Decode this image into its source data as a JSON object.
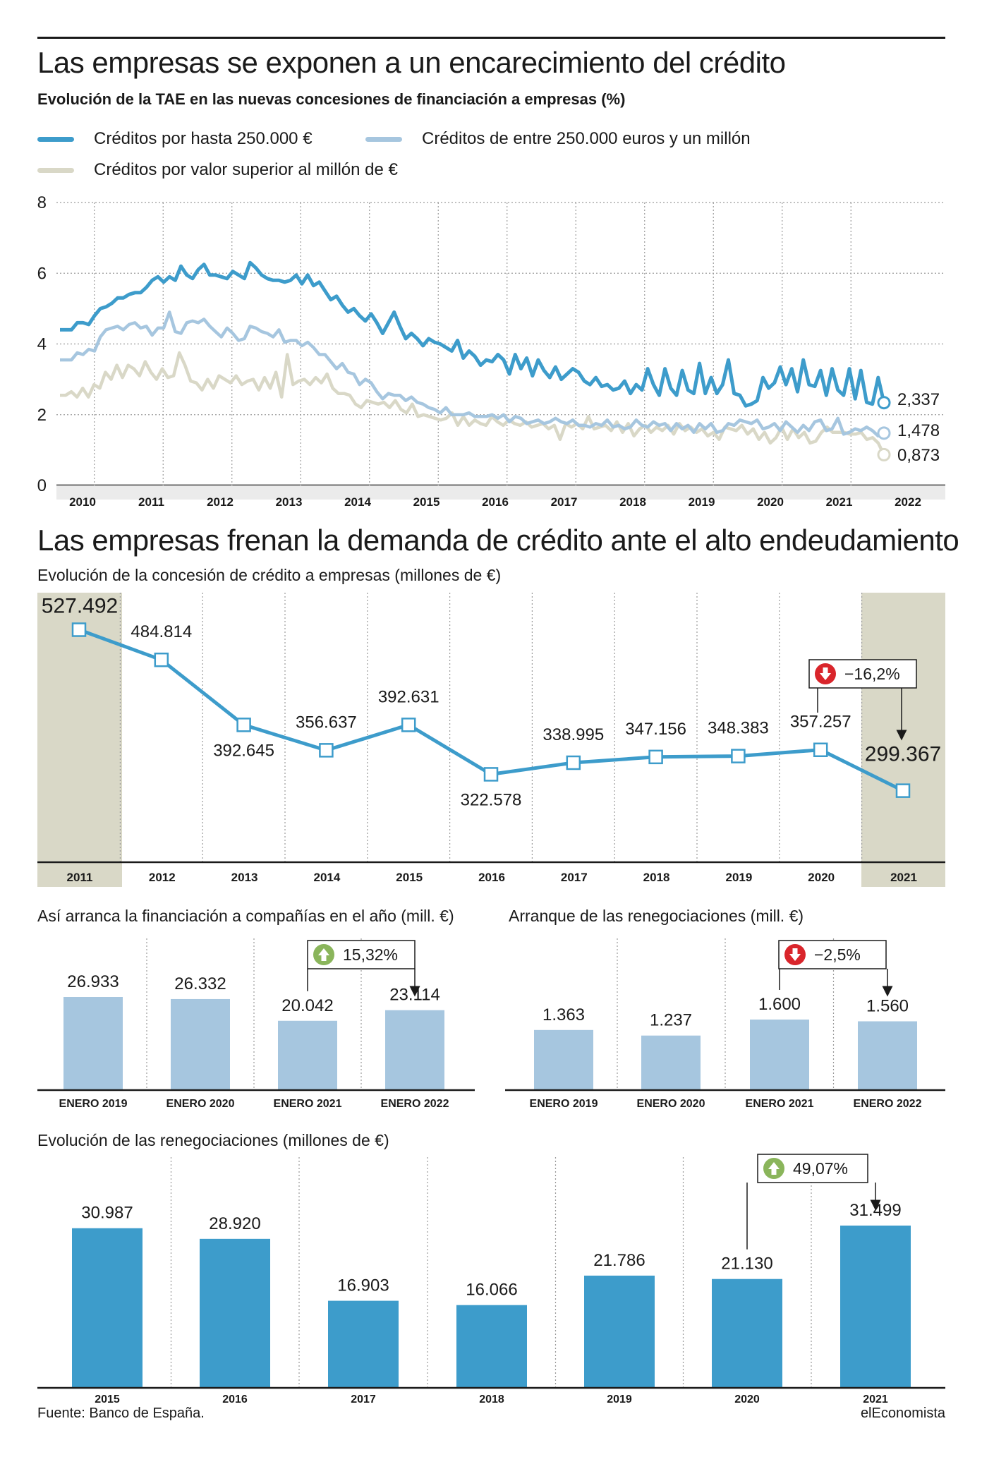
{
  "source": "Fuente: Banco de España.",
  "brand": "elEconomista",
  "colors": {
    "dark_blue": "#3d9ccb",
    "light_blue": "#a6c6df",
    "beige": "#d9d8c7",
    "green": "#8ab55b",
    "red": "#d9252b"
  },
  "chart_data": [
    {
      "type": "line",
      "title": "Las empresas se exponen a un encarecimiento del crédito",
      "subtitle": "Evolución de la TAE en las nuevas concesiones de financiación a  empresas (%)",
      "x_ticks": [
        "2010",
        "2011",
        "2012",
        "2013",
        "2014",
        "2015",
        "2016",
        "2017",
        "2018",
        "2019",
        "2020",
        "2021",
        "2022"
      ],
      "ylim": [
        0,
        8
      ],
      "y_ticks": [
        "0",
        "2",
        "4",
        "6",
        "8"
      ],
      "grid": true,
      "series": [
        {
          "name": "Créditos por hasta 250.000 €",
          "color": "#3d9ccb",
          "end_label": "2,337",
          "values": [
            4.4,
            4.4,
            4.4,
            4.6,
            4.6,
            4.55,
            4.8,
            5.0,
            5.05,
            5.15,
            5.3,
            5.3,
            5.4,
            5.45,
            5.45,
            5.6,
            5.8,
            5.9,
            5.75,
            5.9,
            5.8,
            6.2,
            5.95,
            5.85,
            6.1,
            6.25,
            5.95,
            5.95,
            5.9,
            5.85,
            6.05,
            5.95,
            5.85,
            6.3,
            6.15,
            5.95,
            5.85,
            5.8,
            5.8,
            5.75,
            5.8,
            5.95,
            5.7,
            5.95,
            5.65,
            5.75,
            5.5,
            5.25,
            5.35,
            5.1,
            4.9,
            5.0,
            4.8,
            4.65,
            4.85,
            4.6,
            4.3,
            4.6,
            4.9,
            4.5,
            4.15,
            4.3,
            4.15,
            3.95,
            4.15,
            4.05,
            4.0,
            3.9,
            3.8,
            4.1,
            3.6,
            3.8,
            3.65,
            3.4,
            3.55,
            3.5,
            3.7,
            3.55,
            3.15,
            3.7,
            3.3,
            3.6,
            3.1,
            3.55,
            3.25,
            3.05,
            3.35,
            3.0,
            3.15,
            3.3,
            3.2,
            2.95,
            2.85,
            3.05,
            2.8,
            2.85,
            2.7,
            2.75,
            2.95,
            2.6,
            2.85,
            2.7,
            3.3,
            2.85,
            2.55,
            3.3,
            2.75,
            2.55,
            3.25,
            2.7,
            2.6,
            3.45,
            2.6,
            3.05,
            2.6,
            2.85,
            3.55,
            2.6,
            2.55,
            2.25,
            2.3,
            2.4,
            3.05,
            2.75,
            2.9,
            3.35,
            2.85,
            3.3,
            2.65,
            3.55,
            2.85,
            2.8,
            3.25,
            2.55,
            3.3,
            2.7,
            2.55,
            3.3,
            2.45,
            3.25,
            2.35,
            2.3,
            3.05,
            2.34
          ]
        },
        {
          "name": "Créditos de entre 250.000 euros y un millón",
          "color": "#a6c6df",
          "end_label": "1,478",
          "values": [
            3.55,
            3.55,
            3.55,
            3.75,
            3.7,
            3.85,
            3.8,
            4.2,
            4.4,
            4.45,
            4.5,
            4.4,
            4.55,
            4.6,
            4.45,
            4.5,
            4.25,
            4.45,
            4.45,
            4.9,
            4.35,
            4.3,
            4.6,
            4.65,
            4.6,
            4.7,
            4.5,
            4.35,
            4.2,
            4.45,
            4.3,
            4.1,
            4.15,
            4.5,
            4.45,
            4.35,
            4.3,
            4.2,
            4.4,
            4.05,
            4.1,
            4.1,
            3.95,
            4.05,
            3.9,
            3.7,
            3.7,
            3.5,
            3.3,
            3.45,
            3.2,
            3.15,
            2.85,
            3.0,
            2.9,
            2.65,
            2.45,
            2.6,
            2.55,
            2.55,
            2.4,
            2.5,
            2.35,
            2.3,
            2.2,
            2.15,
            2.05,
            2.2,
            2.0,
            2.0,
            2.0,
            2.05,
            1.95,
            1.95,
            1.95,
            2.0,
            1.9,
            2.0,
            1.8,
            1.95,
            1.9,
            1.75,
            1.8,
            1.85,
            1.75,
            1.8,
            1.9,
            1.8,
            1.75,
            1.85,
            1.7,
            1.7,
            1.65,
            1.75,
            1.7,
            1.85,
            1.65,
            1.7,
            1.6,
            1.65,
            1.85,
            1.7,
            1.65,
            1.8,
            1.7,
            1.75,
            1.55,
            1.75,
            1.6,
            1.7,
            1.5,
            1.75,
            1.6,
            1.75,
            1.5,
            1.55,
            1.75,
            1.7,
            1.85,
            1.8,
            1.75,
            1.85,
            1.6,
            1.65,
            1.75,
            1.55,
            1.8,
            1.65,
            1.5,
            1.7,
            1.55,
            1.8,
            1.85,
            1.55,
            1.6,
            1.9,
            1.45,
            1.5,
            1.6,
            1.55,
            1.65,
            1.55,
            1.4,
            1.48
          ]
        },
        {
          "name": "Créditos por valor superior al millón de €",
          "color": "#d9d8c7",
          "end_label": "0,873",
          "values": [
            2.55,
            2.55,
            2.65,
            2.5,
            2.75,
            2.5,
            2.85,
            2.75,
            3.2,
            3.0,
            3.4,
            3.05,
            3.4,
            3.3,
            3.1,
            3.5,
            3.2,
            3.0,
            3.3,
            3.05,
            3.1,
            3.75,
            3.4,
            2.95,
            2.9,
            2.7,
            3.0,
            2.75,
            3.1,
            3.0,
            2.9,
            3.1,
            2.85,
            2.95,
            3.0,
            2.7,
            3.05,
            2.75,
            3.2,
            2.5,
            3.7,
            2.85,
            2.95,
            3.0,
            2.85,
            3.05,
            2.9,
            3.15,
            2.75,
            2.6,
            2.6,
            2.55,
            2.3,
            2.2,
            2.4,
            2.35,
            2.3,
            2.35,
            2.2,
            2.4,
            2.15,
            2.05,
            2.3,
            1.95,
            2.0,
            1.95,
            1.9,
            1.85,
            1.9,
            2.05,
            1.7,
            1.95,
            1.7,
            1.85,
            1.75,
            1.7,
            1.95,
            1.8,
            1.7,
            1.85,
            1.75,
            1.7,
            1.8,
            1.65,
            1.7,
            1.75,
            1.6,
            1.7,
            1.3,
            1.75,
            1.65,
            1.75,
            1.6,
            1.95,
            1.6,
            1.65,
            1.7,
            1.55,
            1.8,
            1.5,
            1.75,
            1.4,
            1.6,
            1.7,
            1.5,
            1.65,
            1.55,
            1.7,
            1.45,
            1.75,
            1.55,
            1.65,
            1.5,
            1.6,
            1.4,
            1.5,
            1.3,
            1.65,
            1.6,
            1.55,
            1.7,
            1.45,
            1.6,
            1.3,
            1.5,
            1.2,
            1.35,
            1.65,
            1.3,
            1.6,
            1.35,
            1.5,
            1.2,
            1.25,
            1.5,
            1.65,
            1.5,
            1.5,
            1.5,
            1.45,
            1.45,
            1.5,
            1.3,
            1.35,
            1.2,
            0.87
          ]
        }
      ]
    },
    {
      "type": "line",
      "title": "Las empresas frenan la demanda de crédito ante el alto endeudamiento",
      "subtitle": "Evolución de la concesión de crédito a empresas (millones de €)",
      "categories": [
        "2011",
        "2012",
        "2013",
        "2014",
        "2015",
        "2016",
        "2017",
        "2018",
        "2019",
        "2020",
        "2021"
      ],
      "values": [
        527492,
        484814,
        392645,
        356637,
        392631,
        322578,
        338995,
        347156,
        348383,
        357257,
        299367
      ],
      "labels": [
        "527.492",
        "484.814",
        "392.645",
        "356.637",
        "392.631",
        "322.578",
        "338.995",
        "347.156",
        "348.383",
        "357.257",
        "299.367"
      ],
      "change": "−16,2%",
      "change_direction": "down"
    },
    {
      "type": "bar",
      "title": "Así arranca la financiación a compañías en el año (mill. €)",
      "categories": [
        "ENERO 2019",
        "ENERO 2020",
        "ENERO 2021",
        "ENERO 2022"
      ],
      "values": [
        26933,
        26332,
        20042,
        23114
      ],
      "labels": [
        "26.933",
        "26.332",
        "20.042",
        "23.114"
      ],
      "change": "15,32%",
      "change_direction": "up"
    },
    {
      "type": "bar",
      "title": "Arranque de las renegociaciones (mill. €)",
      "categories": [
        "ENERO 2019",
        "ENERO 2020",
        "ENERO 2021",
        "ENERO 2022"
      ],
      "values": [
        1363,
        1237,
        1600,
        1560
      ],
      "labels": [
        "1.363",
        "1.237",
        "1.600",
        "1.560"
      ],
      "change": "−2,5%",
      "change_direction": "down"
    },
    {
      "type": "bar",
      "title": "Evolución de las renegociaciones (millones de €)",
      "categories": [
        "2015",
        "2016",
        "2017",
        "2018",
        "2019",
        "2020",
        "2021"
      ],
      "values": [
        30987,
        28920,
        16903,
        16066,
        21786,
        21130,
        31499
      ],
      "labels": [
        "30.987",
        "28.920",
        "16.903",
        "16.066",
        "21.786",
        "21.130",
        "31.499"
      ],
      "change": "49,07%",
      "change_direction": "up"
    }
  ]
}
